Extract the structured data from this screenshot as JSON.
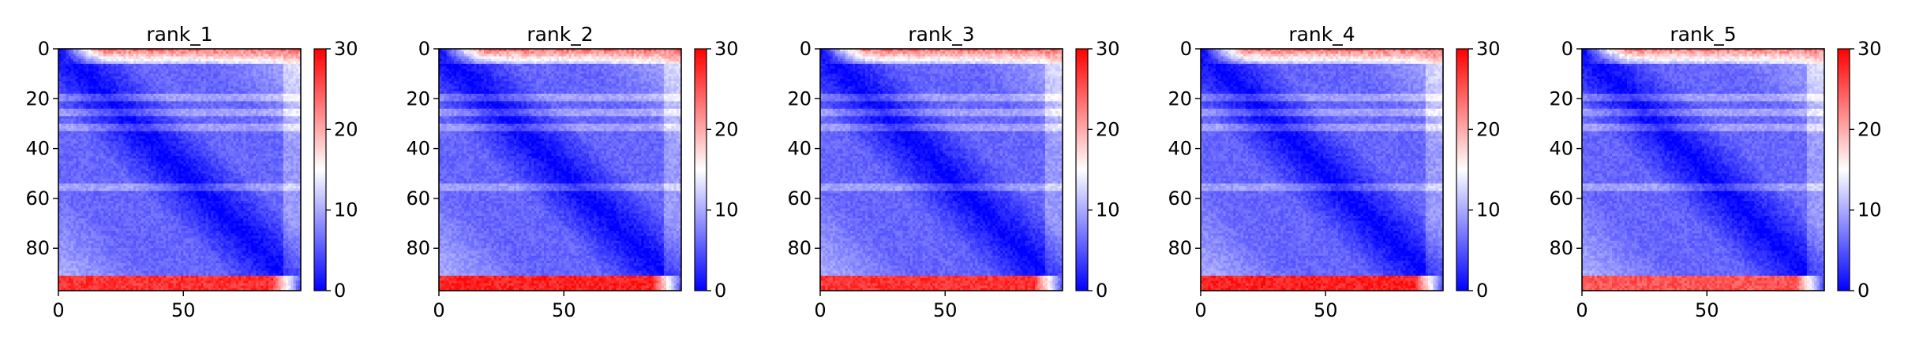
{
  "chart_data": [
    {
      "type": "heatmap",
      "title": "rank_1",
      "xticks": [
        0,
        50
      ],
      "yticks": [
        0,
        20,
        40,
        60,
        80
      ],
      "xlim": [
        0,
        97
      ],
      "ylim": [
        97,
        0
      ],
      "colorbar": {
        "ticks": [
          0,
          10,
          20,
          30
        ],
        "range": [
          0,
          30
        ],
        "colors": [
          "#0000ff",
          "#ffffff",
          "#ff0000"
        ]
      },
      "pattern": {
        "n": 97,
        "diagonal_value": 0,
        "background_value": 6,
        "far_band_value": 11,
        "top_band_rows": [
          0,
          5
        ],
        "top_band_value": 23,
        "bottom_band_rows": [
          91,
          96
        ],
        "bottom_band_value": 27,
        "light_rows": [
          19,
          25,
          31,
          55
        ]
      }
    },
    {
      "type": "heatmap",
      "title": "rank_2",
      "xticks": [
        0,
        50
      ],
      "yticks": [
        0,
        20,
        40,
        60,
        80
      ],
      "xlim": [
        0,
        97
      ],
      "ylim": [
        97,
        0
      ],
      "colorbar": {
        "ticks": [
          0,
          10,
          20,
          30
        ],
        "range": [
          0,
          30
        ],
        "colors": [
          "#0000ff",
          "#ffffff",
          "#ff0000"
        ]
      },
      "pattern": {
        "n": 97,
        "diagonal_value": 0,
        "background_value": 6,
        "far_band_value": 11,
        "top_band_rows": [
          0,
          5
        ],
        "top_band_value": 23,
        "bottom_band_rows": [
          91,
          96
        ],
        "bottom_band_value": 28,
        "light_rows": [
          19,
          25,
          31,
          55
        ]
      }
    },
    {
      "type": "heatmap",
      "title": "rank_3",
      "xticks": [
        0,
        50
      ],
      "yticks": [
        0,
        20,
        40,
        60,
        80
      ],
      "xlim": [
        0,
        97
      ],
      "ylim": [
        97,
        0
      ],
      "colorbar": {
        "ticks": [
          0,
          10,
          20,
          30
        ],
        "range": [
          0,
          30
        ],
        "colors": [
          "#0000ff",
          "#ffffff",
          "#ff0000"
        ]
      },
      "pattern": {
        "n": 97,
        "diagonal_value": 0,
        "background_value": 6,
        "far_band_value": 11,
        "top_band_rows": [
          0,
          5
        ],
        "top_band_value": 23,
        "bottom_band_rows": [
          91,
          96
        ],
        "bottom_band_value": 27,
        "light_rows": [
          19,
          25,
          31,
          55
        ]
      }
    },
    {
      "type": "heatmap",
      "title": "rank_4",
      "xticks": [
        0,
        50
      ],
      "yticks": [
        0,
        20,
        40,
        60,
        80
      ],
      "xlim": [
        0,
        97
      ],
      "ylim": [
        97,
        0
      ],
      "colorbar": {
        "ticks": [
          0,
          10,
          20,
          30
        ],
        "range": [
          0,
          30
        ],
        "colors": [
          "#0000ff",
          "#ffffff",
          "#ff0000"
        ]
      },
      "pattern": {
        "n": 97,
        "diagonal_value": 0,
        "background_value": 6,
        "far_band_value": 11,
        "top_band_rows": [
          0,
          5
        ],
        "top_band_value": 23,
        "bottom_band_rows": [
          91,
          96
        ],
        "bottom_band_value": 28,
        "light_rows": [
          19,
          25,
          31,
          55
        ]
      }
    },
    {
      "type": "heatmap",
      "title": "rank_5",
      "xticks": [
        0,
        50
      ],
      "yticks": [
        0,
        20,
        40,
        60,
        80
      ],
      "xlim": [
        0,
        97
      ],
      "ylim": [
        97,
        0
      ],
      "colorbar": {
        "ticks": [
          0,
          10,
          20,
          30
        ],
        "range": [
          0,
          30
        ],
        "colors": [
          "#0000ff",
          "#ffffff",
          "#ff0000"
        ]
      },
      "pattern": {
        "n": 97,
        "diagonal_value": 0,
        "background_value": 6,
        "far_band_value": 11,
        "top_band_rows": [
          0,
          5
        ],
        "top_band_value": 22,
        "bottom_band_rows": [
          91,
          96
        ],
        "bottom_band_value": 25,
        "light_rows": [
          19,
          25,
          31,
          55
        ]
      }
    }
  ]
}
